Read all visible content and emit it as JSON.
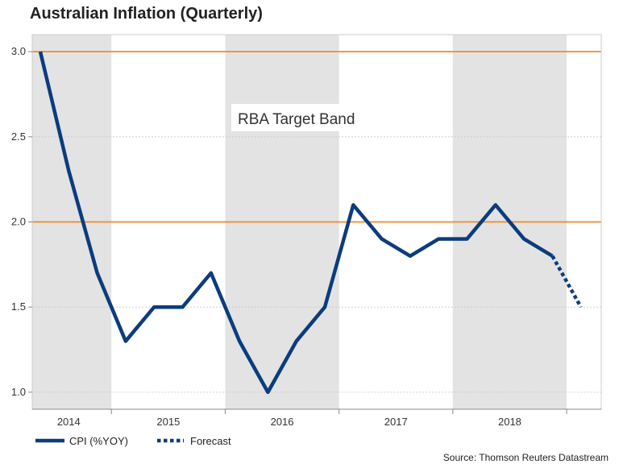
{
  "chart_data": {
    "type": "line",
    "title": "Australian Inflation (Quarterly)",
    "xlabel": "",
    "ylabel": "",
    "ylim": [
      0.9,
      3.1
    ],
    "yticks": [
      1.0,
      1.5,
      2.0,
      2.5,
      3.0
    ],
    "ytick_labels": [
      "1.0",
      "1.5",
      "2.0",
      "2.5",
      "3.0"
    ],
    "years": [
      "2014",
      "2015",
      "2016",
      "2017",
      "2018"
    ],
    "grid": true,
    "series": [
      {
        "name": "CPI (%YOY)",
        "style": "solid",
        "color": "#0b3c7d",
        "x": [
          0,
          1,
          2,
          3,
          4,
          5,
          6,
          7,
          8,
          9,
          10,
          11,
          12,
          13,
          14,
          15,
          16,
          17,
          18
        ],
        "values": [
          3.0,
          2.3,
          1.7,
          1.3,
          1.5,
          1.5,
          1.7,
          1.3,
          1.0,
          1.3,
          1.5,
          2.1,
          1.9,
          1.8,
          1.9,
          1.9,
          2.1,
          1.9,
          1.8
        ]
      },
      {
        "name": "Forecast",
        "style": "dotted",
        "color": "#0b3c7d",
        "x": [
          18,
          19
        ],
        "values": [
          1.8,
          1.5
        ]
      }
    ],
    "target_band": {
      "label": "RBA Target Band",
      "lower": 2.0,
      "upper": 3.0,
      "color": "#f0892a"
    },
    "shaded_color": "#e3e3e3",
    "source": "Source: Thomson Reuters Datastream",
    "legend_position": "bottom-left"
  }
}
